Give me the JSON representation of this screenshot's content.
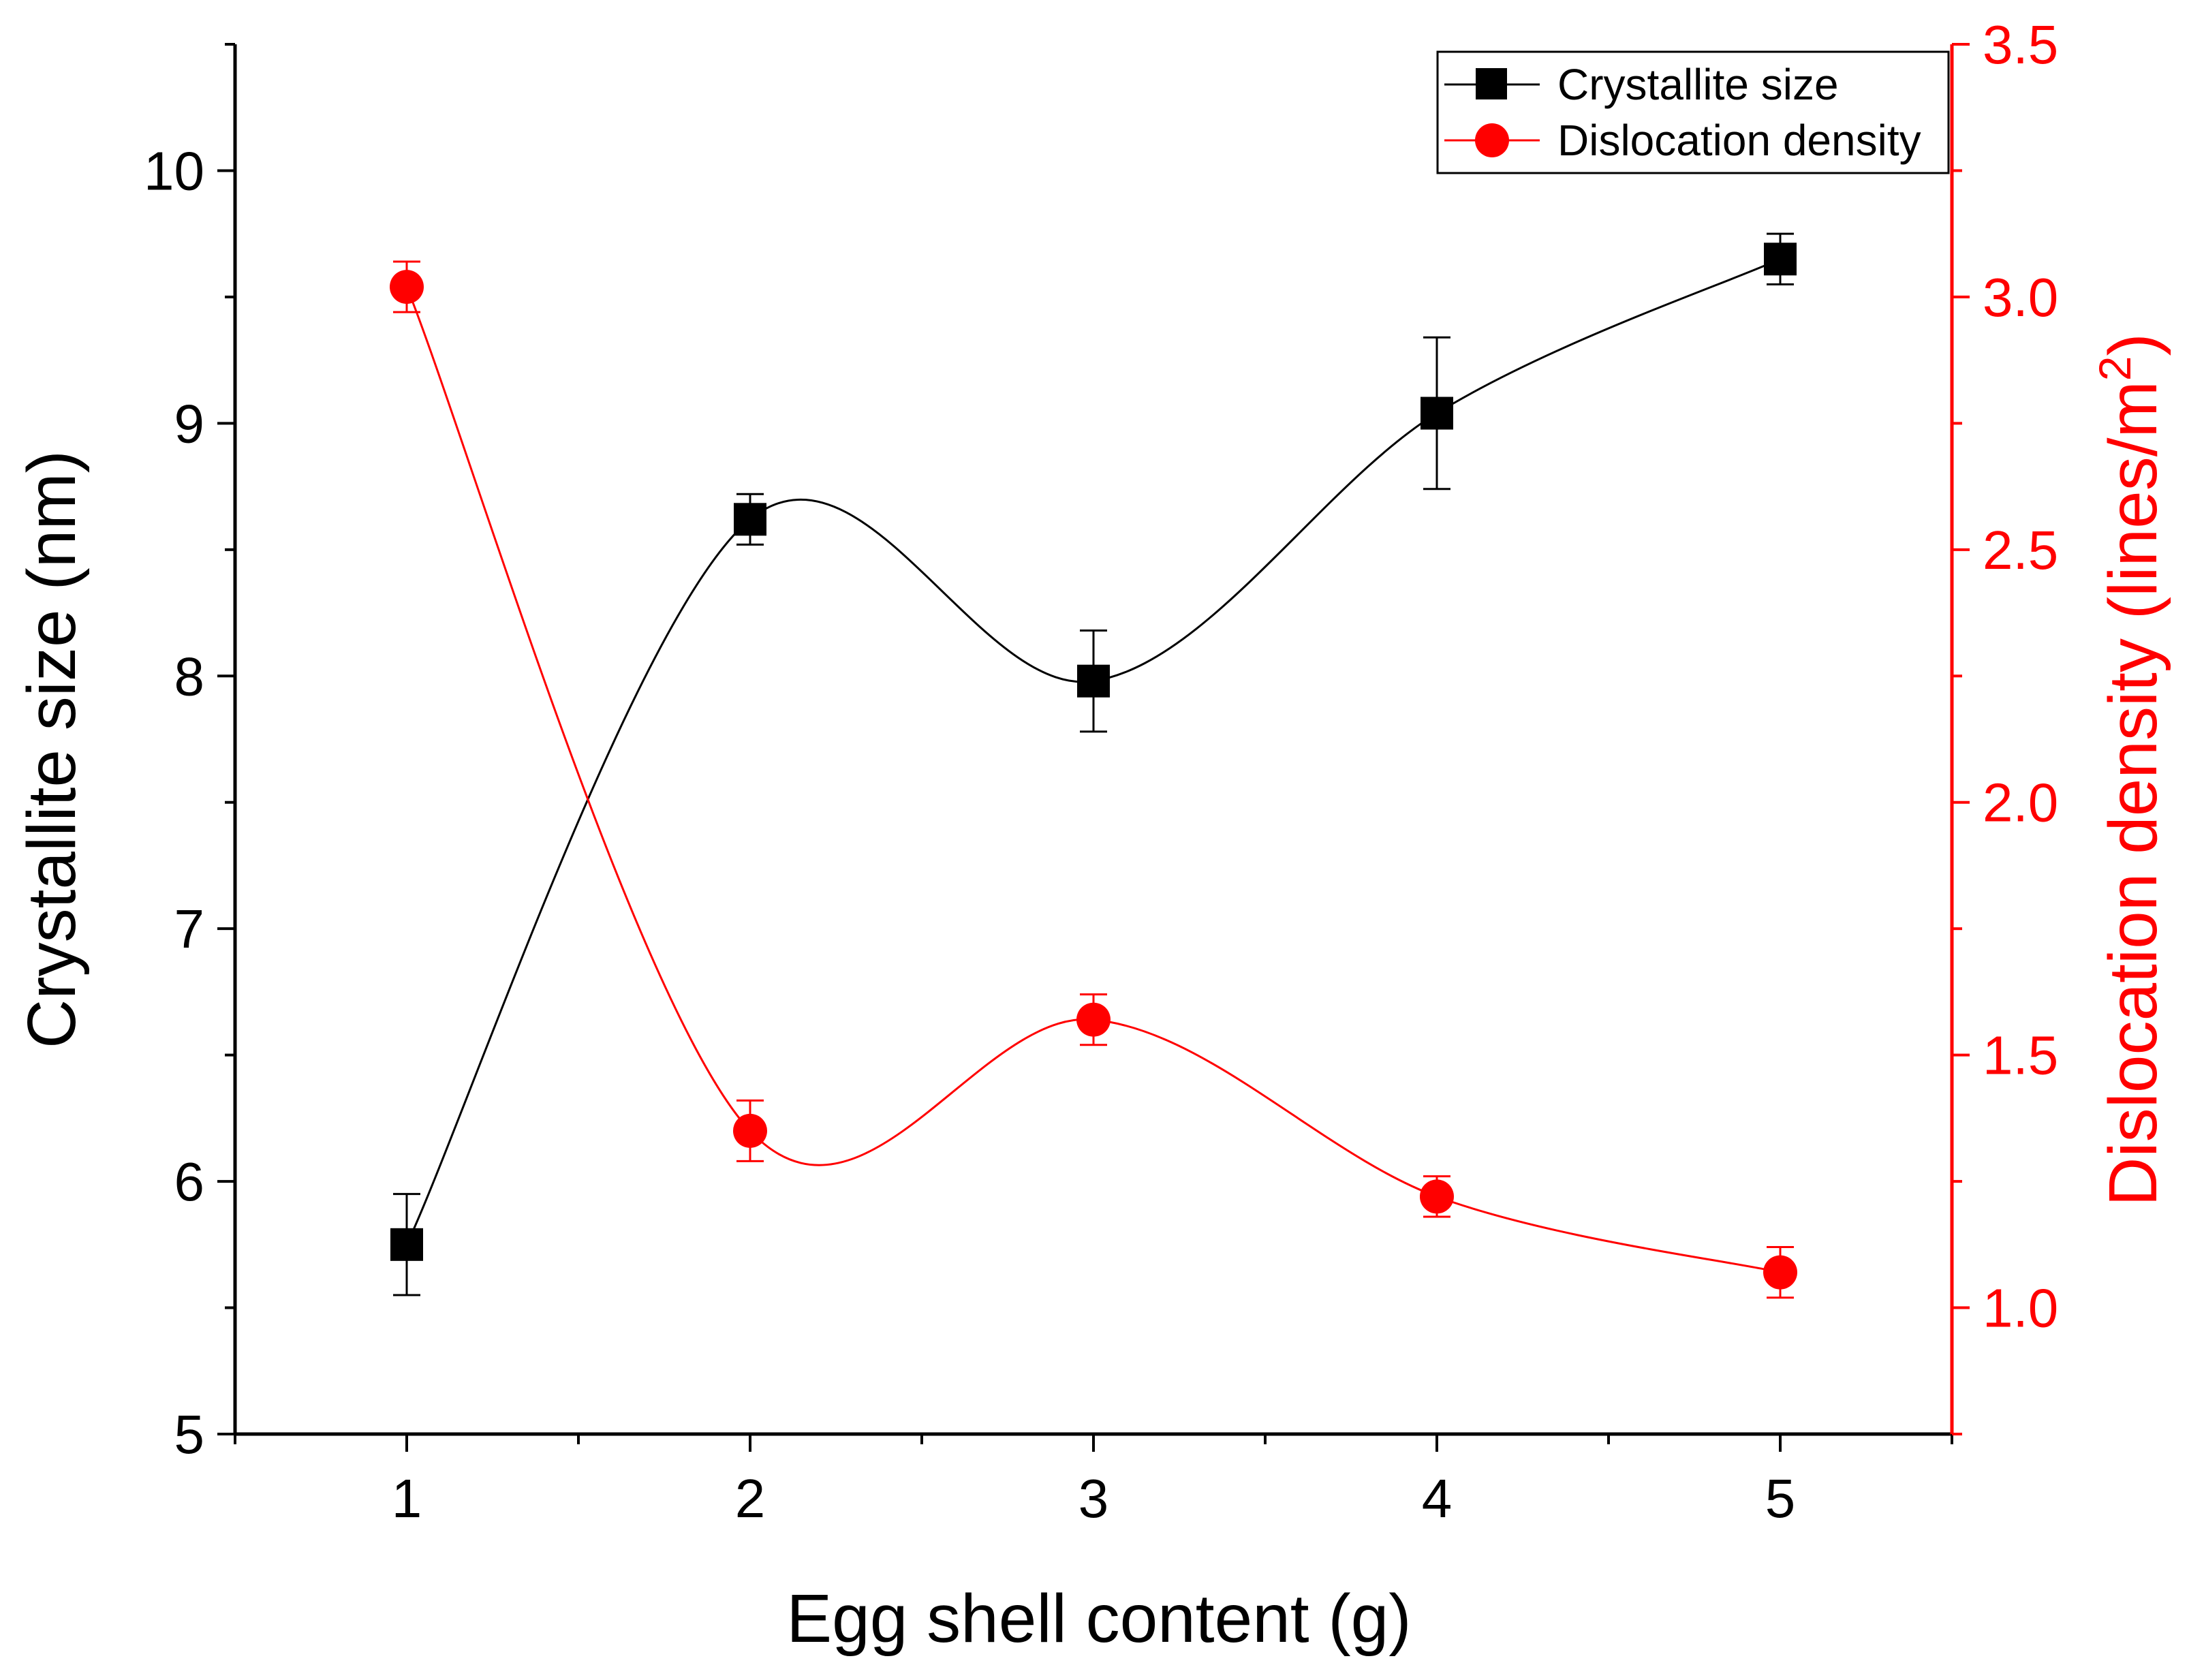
{
  "chart_data": {
    "type": "line",
    "xlabel": "Egg shell content (g)",
    "ylabel_left": "Crystallite size (nm)",
    "ylabel_right": "Dislocation density (lines/m",
    "ylabel_right_sup": "2",
    "ylabel_right_close": ")",
    "xlim": [
      0.5,
      5.5
    ],
    "ylim_left": [
      5,
      10.5
    ],
    "ylim_right": [
      0.75,
      3.5
    ],
    "x_ticks": [
      1,
      2,
      3,
      4,
      5
    ],
    "x_tick_labels": [
      "1",
      "2",
      "3",
      "4",
      "5"
    ],
    "y_left_ticks": [
      5,
      6,
      7,
      8,
      9,
      10
    ],
    "y_left_tick_labels": [
      "5",
      "6",
      "7",
      "8",
      "9",
      "10"
    ],
    "y_right_ticks": [
      1.0,
      1.5,
      2.0,
      2.5,
      3.0,
      3.5
    ],
    "y_right_tick_labels": [
      "1.0",
      "1.5",
      "2.0",
      "2.5",
      "3.0",
      "3.5"
    ],
    "legend_position": "top-right",
    "series": [
      {
        "name": "Crystallite size",
        "axis": "left",
        "color": "#000000",
        "marker": "square",
        "x": [
          1,
          2,
          3,
          4,
          5
        ],
        "values": [
          5.75,
          8.62,
          7.98,
          9.04,
          9.65
        ],
        "errors": [
          0.2,
          0.1,
          0.2,
          0.3,
          0.1
        ]
      },
      {
        "name": "Dislocation density",
        "axis": "right",
        "color": "#ff0000",
        "marker": "circle",
        "x": [
          1,
          2,
          3,
          4,
          5
        ],
        "values": [
          3.02,
          1.35,
          1.57,
          1.22,
          1.07
        ],
        "errors": [
          0.05,
          0.06,
          0.05,
          0.04,
          0.05
        ]
      }
    ]
  }
}
